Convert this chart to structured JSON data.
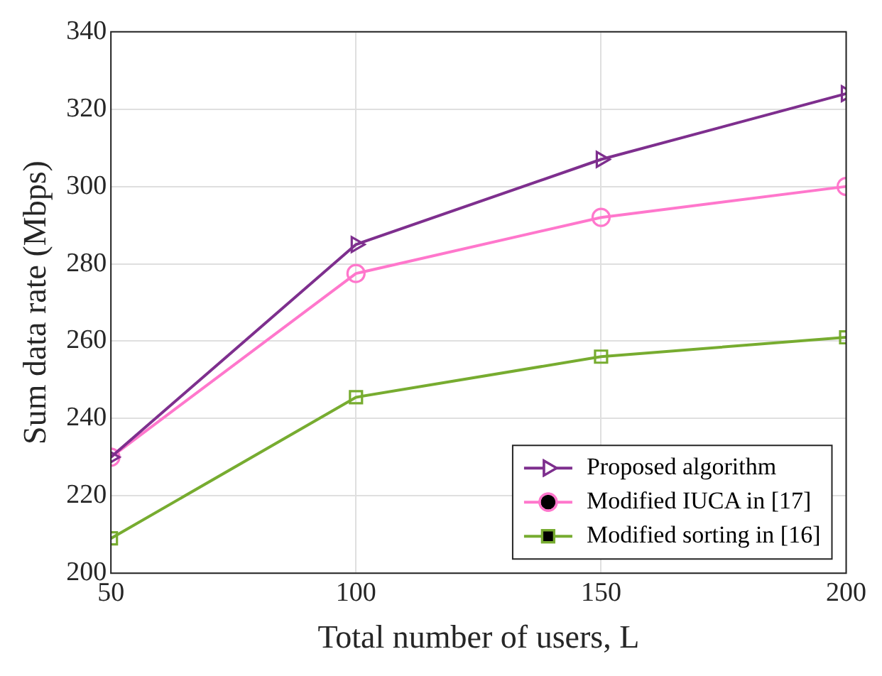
{
  "chart_data": {
    "type": "line",
    "xlabel": "Total number of users, L",
    "ylabel": "Sum data rate (Mbps)",
    "x": [
      50,
      100,
      150,
      200
    ],
    "series": [
      {
        "name": "Proposed algorithm",
        "color": "#7e2f8e",
        "marker": "triangle",
        "values": [
          230,
          285,
          307,
          324
        ]
      },
      {
        "name": "Modified IUCA in [17]",
        "color": "#ff77cc",
        "marker": "circle",
        "values": [
          230,
          277.5,
          292,
          300
        ]
      },
      {
        "name": "Modified sorting in [16]",
        "color": "#77ac30",
        "marker": "square",
        "values": [
          209,
          245.5,
          256,
          261
        ]
      }
    ],
    "xlim": [
      50,
      200
    ],
    "xticks": [
      50,
      100,
      150,
      200
    ],
    "ylim": [
      200,
      340
    ],
    "yticks": [
      200,
      220,
      240,
      260,
      280,
      300,
      320,
      340
    ],
    "grid": true,
    "legend": "bottom right",
    "line_style": "solid"
  }
}
